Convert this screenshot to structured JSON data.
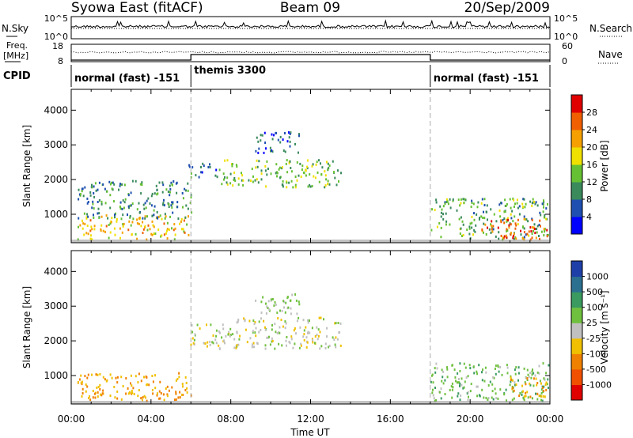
{
  "header": {
    "station": "Syowa East (fitACF)",
    "beam": "Beam 09",
    "date": "20/Sep/2009"
  },
  "strip": {
    "nsky_label": "N.Sky",
    "nsky_top": "10^5",
    "nsky_bottom": "10^0",
    "nsearch_label": "N.Search",
    "nsearch_top": "10^5",
    "nsearch_bottom": "10^0",
    "freq_label_1": "Freq.",
    "freq_label_2": "[MHz]",
    "freq_top": "18",
    "freq_bottom": "8",
    "nave_label": "Nave",
    "nave_top": "60",
    "nave_bottom": "0",
    "cpid_label": "CPID",
    "modes": [
      {
        "label": "normal (fast) -151",
        "start": 0,
        "end": 6
      },
      {
        "label": "themis 3300",
        "start": 6,
        "end": 18
      },
      {
        "label": "normal (fast) -151",
        "start": 18,
        "end": 24
      }
    ]
  },
  "colorbars": {
    "power": {
      "label": "Power [dB]",
      "ticks": [
        "4",
        "8",
        "12",
        "16",
        "20",
        "24",
        "28"
      ],
      "colors": [
        "#0000ff",
        "#1f4fb0",
        "#3a8a5c",
        "#66c033",
        "#f0e000",
        "#f5a000",
        "#f06000",
        "#e00000"
      ]
    },
    "velocity": {
      "label": "Velocity [m s⁻¹]",
      "ticks": [
        "1000",
        "500",
        "100",
        "25",
        "-25",
        "-100",
        "-500",
        "-1000"
      ],
      "colors": [
        "#1f3fa8",
        "#2c7090",
        "#3a9a60",
        "#70c040",
        "#c0c0c0",
        "#f0c000",
        "#f08000",
        "#f05000",
        "#e00000"
      ]
    }
  },
  "chart_data": [
    {
      "type": "heatmap",
      "name": "power",
      "ylabel": "Slant Range [km]",
      "xlabel": "Time UT",
      "x_ticks": [
        "00:00",
        "04:00",
        "08:00",
        "12:00",
        "16:00",
        "20:00",
        "00:00"
      ],
      "y_ticks": [
        "1000",
        "2000",
        "3000",
        "4000"
      ],
      "xlim_hours": [
        0,
        24
      ],
      "ylim_km": [
        180,
        4600
      ],
      "regions": [
        {
          "t0": 0.3,
          "t1": 6.0,
          "r0": 300,
          "r1": 1000,
          "value": 20
        },
        {
          "t0": 0.3,
          "t1": 6.0,
          "r0": 900,
          "r1": 2000,
          "value": 10
        },
        {
          "t0": 5.8,
          "t1": 7.5,
          "r0": 2100,
          "r1": 2500,
          "value": 8
        },
        {
          "t0": 7.5,
          "t1": 13.5,
          "r0": 1800,
          "r1": 2600,
          "value": 14
        },
        {
          "t0": 9.2,
          "t1": 11.5,
          "r0": 2800,
          "r1": 3400,
          "value": 6
        },
        {
          "t0": 18.0,
          "t1": 23.9,
          "r0": 300,
          "r1": 1500,
          "value": 12
        },
        {
          "t0": 20.5,
          "t1": 23.9,
          "r0": 300,
          "r1": 900,
          "value": 26
        }
      ]
    },
    {
      "type": "heatmap",
      "name": "velocity",
      "ylabel": "Slant Range [km]",
      "xlabel": "Time UT",
      "x_ticks": [
        "00:00",
        "04:00",
        "08:00",
        "12:00",
        "16:00",
        "20:00",
        "00:00"
      ],
      "y_ticks": [
        "1000",
        "2000",
        "3000",
        "4000"
      ],
      "xlim_hours": [
        0,
        24
      ],
      "ylim_km": [
        180,
        4600
      ],
      "regions": [
        {
          "t0": 0.3,
          "t1": 6.0,
          "r0": 300,
          "r1": 1100,
          "value": -400
        },
        {
          "t0": 5.8,
          "t1": 8.0,
          "r0": 1800,
          "r1": 2500,
          "value": 0
        },
        {
          "t0": 8.0,
          "t1": 13.5,
          "r0": 1800,
          "r1": 2700,
          "value": 0
        },
        {
          "t0": 9.2,
          "t1": 11.5,
          "r0": 2800,
          "r1": 3400,
          "value": 150
        },
        {
          "t0": 18.0,
          "t1": 23.9,
          "r0": 300,
          "r1": 1400,
          "value": 300
        },
        {
          "t0": 22.0,
          "t1": 23.9,
          "r0": 400,
          "r1": 1000,
          "value": -400
        }
      ]
    }
  ]
}
